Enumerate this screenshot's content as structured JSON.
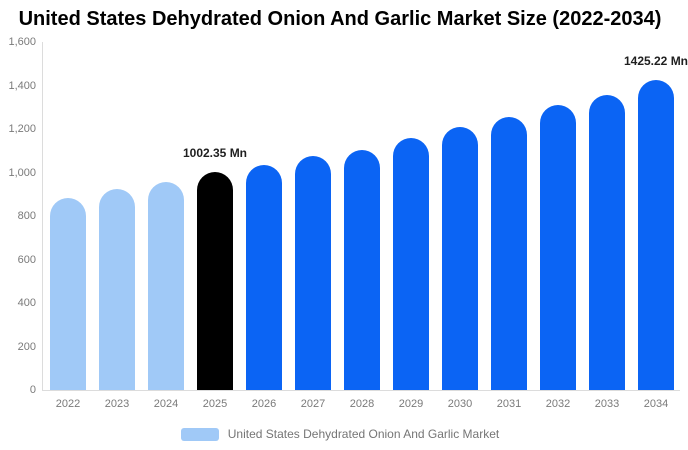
{
  "chart_data": {
    "type": "bar",
    "title": "United States Dehydrated Onion And Garlic Market Size (2022-2034)",
    "xlabel": "",
    "ylabel": "",
    "unit": "Mn",
    "categories": [
      "2022",
      "2023",
      "2024",
      "2025",
      "2026",
      "2027",
      "2028",
      "2029",
      "2030",
      "2031",
      "2032",
      "2033",
      "2034"
    ],
    "values": [
      885,
      925,
      955,
      1002.35,
      1035,
      1075,
      1105,
      1160,
      1210,
      1255,
      1310,
      1355,
      1425.22
    ],
    "bar_colors": [
      "#A0C9F7",
      "#A0C9F7",
      "#A0C9F7",
      "#000000",
      "#0B64F4",
      "#0B64F4",
      "#0B64F4",
      "#0B64F4",
      "#0B64F4",
      "#0B64F4",
      "#0B64F4",
      "#0B64F4",
      "#0B64F4"
    ],
    "ylim": [
      0,
      1600
    ],
    "y_ticks": [
      {
        "value": 0,
        "label": "0"
      },
      {
        "value": 200,
        "label": "200"
      },
      {
        "value": 400,
        "label": "400"
      },
      {
        "value": 600,
        "label": "600"
      },
      {
        "value": 800,
        "label": "800"
      },
      {
        "value": 1000,
        "label": "1,000"
      },
      {
        "value": 1200,
        "label": "1,200"
      },
      {
        "value": 1400,
        "label": "1,400"
      },
      {
        "value": 1600,
        "label": "1,600"
      }
    ],
    "grid": false,
    "legend_position": "bottom",
    "legend": [
      {
        "label": "United States Dehydrated Onion And Garlic Market",
        "color": "#A0C9F7"
      }
    ],
    "annotations": [
      {
        "category": "2025",
        "text": "1002.35 Mn"
      },
      {
        "category": "2034",
        "text": "1425.22 Mn"
      }
    ],
    "palette": {
      "historical": "#A0C9F7",
      "base_year": "#000000",
      "forecast": "#0B64F4"
    }
  }
}
